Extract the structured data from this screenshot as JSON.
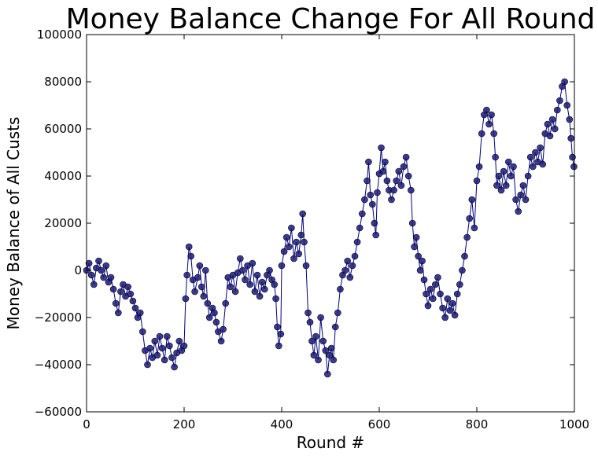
{
  "chart_data": {
    "type": "line",
    "title": "Money Balance Change For All Round",
    "xlabel": "Round #",
    "ylabel": "Money Balance of All Custs",
    "xlim": [
      0,
      1000
    ],
    "ylim": [
      -60000,
      100000
    ],
    "x_ticks": [
      0,
      200,
      400,
      600,
      800,
      1000
    ],
    "x_tick_labels": [
      "0",
      "200",
      "400",
      "600",
      "800",
      "1000"
    ],
    "y_ticks": [
      -60000,
      -40000,
      -20000,
      0,
      20000,
      40000,
      60000,
      80000,
      100000
    ],
    "y_tick_labels": [
      "−60000",
      "−40000",
      "−20000",
      "0",
      "20000",
      "40000",
      "60000",
      "80000",
      "100000"
    ],
    "grid": false,
    "legend": "none",
    "colors": {
      "line": "#00007f",
      "marker": "#1a1a80",
      "marker_edge": "#000000"
    },
    "series": [
      {
        "marker": "circle",
        "points": [
          [
            0,
            0
          ],
          [
            5,
            3000
          ],
          [
            10,
            -2000
          ],
          [
            15,
            -6000
          ],
          [
            20,
            1000
          ],
          [
            25,
            4000
          ],
          [
            30,
            0
          ],
          [
            35,
            -3000
          ],
          [
            40,
            2000
          ],
          [
            45,
            -5000
          ],
          [
            50,
            -3000
          ],
          [
            55,
            -8000
          ],
          [
            60,
            -14000
          ],
          [
            65,
            -18000
          ],
          [
            70,
            -9000
          ],
          [
            75,
            -6000
          ],
          [
            80,
            -11000
          ],
          [
            85,
            -7000
          ],
          [
            90,
            -10000
          ],
          [
            95,
            -13000
          ],
          [
            100,
            -16000
          ],
          [
            105,
            -20000
          ],
          [
            110,
            -18000
          ],
          [
            115,
            -26000
          ],
          [
            120,
            -34000
          ],
          [
            125,
            -40000
          ],
          [
            130,
            -33000
          ],
          [
            135,
            -37000
          ],
          [
            140,
            -30000
          ],
          [
            145,
            -36000
          ],
          [
            150,
            -28000
          ],
          [
            155,
            -33000
          ],
          [
            160,
            -38000
          ],
          [
            165,
            -28000
          ],
          [
            170,
            -32000
          ],
          [
            175,
            -37000
          ],
          [
            180,
            -41000
          ],
          [
            185,
            -35000
          ],
          [
            190,
            -30000
          ],
          [
            195,
            -34000
          ],
          [
            200,
            -32000
          ],
          [
            203,
            -12000
          ],
          [
            206,
            -2000
          ],
          [
            210,
            10000
          ],
          [
            214,
            6000
          ],
          [
            218,
            -4000
          ],
          [
            222,
            -9000
          ],
          [
            228,
            -3000
          ],
          [
            232,
            2000
          ],
          [
            236,
            -7000
          ],
          [
            240,
            -11000
          ],
          [
            244,
            0
          ],
          [
            248,
            -14000
          ],
          [
            252,
            -20000
          ],
          [
            258,
            -16000
          ],
          [
            262,
            -18000
          ],
          [
            266,
            -22000
          ],
          [
            270,
            -26000
          ],
          [
            276,
            -30000
          ],
          [
            280,
            -25000
          ],
          [
            285,
            -14000
          ],
          [
            290,
            -3000
          ],
          [
            295,
            -7000
          ],
          [
            300,
            -2000
          ],
          [
            305,
            -9000
          ],
          [
            310,
            -1000
          ],
          [
            315,
            5000
          ],
          [
            320,
            0
          ],
          [
            325,
            -4000
          ],
          [
            330,
            2000
          ],
          [
            335,
            -6000
          ],
          [
            340,
            3000
          ],
          [
            345,
            -9000
          ],
          [
            350,
            -2000
          ],
          [
            355,
            -11000
          ],
          [
            360,
            -5000
          ],
          [
            365,
            -8000
          ],
          [
            370,
            -2000
          ],
          [
            375,
            0
          ],
          [
            380,
            -4000
          ],
          [
            385,
            -6000
          ],
          [
            388,
            -12000
          ],
          [
            391,
            -24000
          ],
          [
            394,
            -32000
          ],
          [
            398,
            -27000
          ],
          [
            400,
            2000
          ],
          [
            405,
            8000
          ],
          [
            410,
            14000
          ],
          [
            415,
            10000
          ],
          [
            420,
            18000
          ],
          [
            425,
            5000
          ],
          [
            430,
            12000
          ],
          [
            435,
            7000
          ],
          [
            440,
            15000
          ],
          [
            443,
            24000
          ],
          [
            446,
            12000
          ],
          [
            450,
            2000
          ],
          [
            454,
            -18000
          ],
          [
            458,
            -22000
          ],
          [
            462,
            -30000
          ],
          [
            466,
            -36000
          ],
          [
            470,
            -28000
          ],
          [
            475,
            -38000
          ],
          [
            480,
            -20000
          ],
          [
            485,
            -30000
          ],
          [
            490,
            -34000
          ],
          [
            494,
            -44000
          ],
          [
            498,
            -36000
          ],
          [
            502,
            -33000
          ],
          [
            506,
            -38000
          ],
          [
            510,
            -24000
          ],
          [
            515,
            -18000
          ],
          [
            520,
            -8000
          ],
          [
            525,
            -2000
          ],
          [
            530,
            0
          ],
          [
            535,
            4000
          ],
          [
            540,
            -3000
          ],
          [
            545,
            2000
          ],
          [
            550,
            6000
          ],
          [
            555,
            12000
          ],
          [
            560,
            18000
          ],
          [
            565,
            24000
          ],
          [
            570,
            30000
          ],
          [
            575,
            38000
          ],
          [
            578,
            46000
          ],
          [
            582,
            32000
          ],
          [
            586,
            28000
          ],
          [
            590,
            20000
          ],
          [
            593,
            15000
          ],
          [
            596,
            33000
          ],
          [
            600,
            41000
          ],
          [
            604,
            52000
          ],
          [
            608,
            42000
          ],
          [
            612,
            46000
          ],
          [
            616,
            38000
          ],
          [
            620,
            34000
          ],
          [
            625,
            30000
          ],
          [
            630,
            34000
          ],
          [
            635,
            38000
          ],
          [
            640,
            42000
          ],
          [
            645,
            36000
          ],
          [
            650,
            44000
          ],
          [
            655,
            48000
          ],
          [
            660,
            40000
          ],
          [
            665,
            34000
          ],
          [
            668,
            20000
          ],
          [
            672,
            10000
          ],
          [
            676,
            14000
          ],
          [
            680,
            6000
          ],
          [
            684,
            0
          ],
          [
            688,
            4000
          ],
          [
            692,
            -4000
          ],
          [
            696,
            -10000
          ],
          [
            700,
            -15000
          ],
          [
            705,
            -8000
          ],
          [
            710,
            -12000
          ],
          [
            715,
            -6000
          ],
          [
            720,
            -3000
          ],
          [
            725,
            -10000
          ],
          [
            730,
            -16000
          ],
          [
            735,
            -20000
          ],
          [
            740,
            -12000
          ],
          [
            745,
            -17000
          ],
          [
            750,
            -14000
          ],
          [
            755,
            -19000
          ],
          [
            760,
            -10000
          ],
          [
            765,
            -6000
          ],
          [
            770,
            0
          ],
          [
            775,
            6000
          ],
          [
            780,
            14000
          ],
          [
            785,
            22000
          ],
          [
            790,
            30000
          ],
          [
            795,
            18000
          ],
          [
            800,
            38000
          ],
          [
            805,
            44000
          ],
          [
            810,
            58000
          ],
          [
            815,
            66000
          ],
          [
            820,
            68000
          ],
          [
            825,
            62000
          ],
          [
            830,
            66000
          ],
          [
            835,
            58000
          ],
          [
            838,
            48000
          ],
          [
            841,
            36000
          ],
          [
            845,
            40000
          ],
          [
            850,
            34000
          ],
          [
            855,
            42000
          ],
          [
            860,
            36000
          ],
          [
            865,
            46000
          ],
          [
            870,
            40000
          ],
          [
            875,
            44000
          ],
          [
            880,
            30000
          ],
          [
            885,
            25000
          ],
          [
            890,
            32000
          ],
          [
            895,
            36000
          ],
          [
            900,
            30000
          ],
          [
            905,
            40000
          ],
          [
            910,
            48000
          ],
          [
            915,
            44000
          ],
          [
            920,
            50000
          ],
          [
            925,
            46000
          ],
          [
            930,
            52000
          ],
          [
            935,
            45000
          ],
          [
            940,
            58000
          ],
          [
            945,
            62000
          ],
          [
            950,
            57000
          ],
          [
            955,
            64000
          ],
          [
            960,
            60000
          ],
          [
            965,
            68000
          ],
          [
            970,
            72000
          ],
          [
            975,
            78000
          ],
          [
            980,
            80000
          ],
          [
            985,
            70000
          ],
          [
            990,
            64000
          ],
          [
            993,
            56000
          ],
          [
            996,
            48000
          ],
          [
            999,
            44000
          ]
        ]
      }
    ]
  }
}
